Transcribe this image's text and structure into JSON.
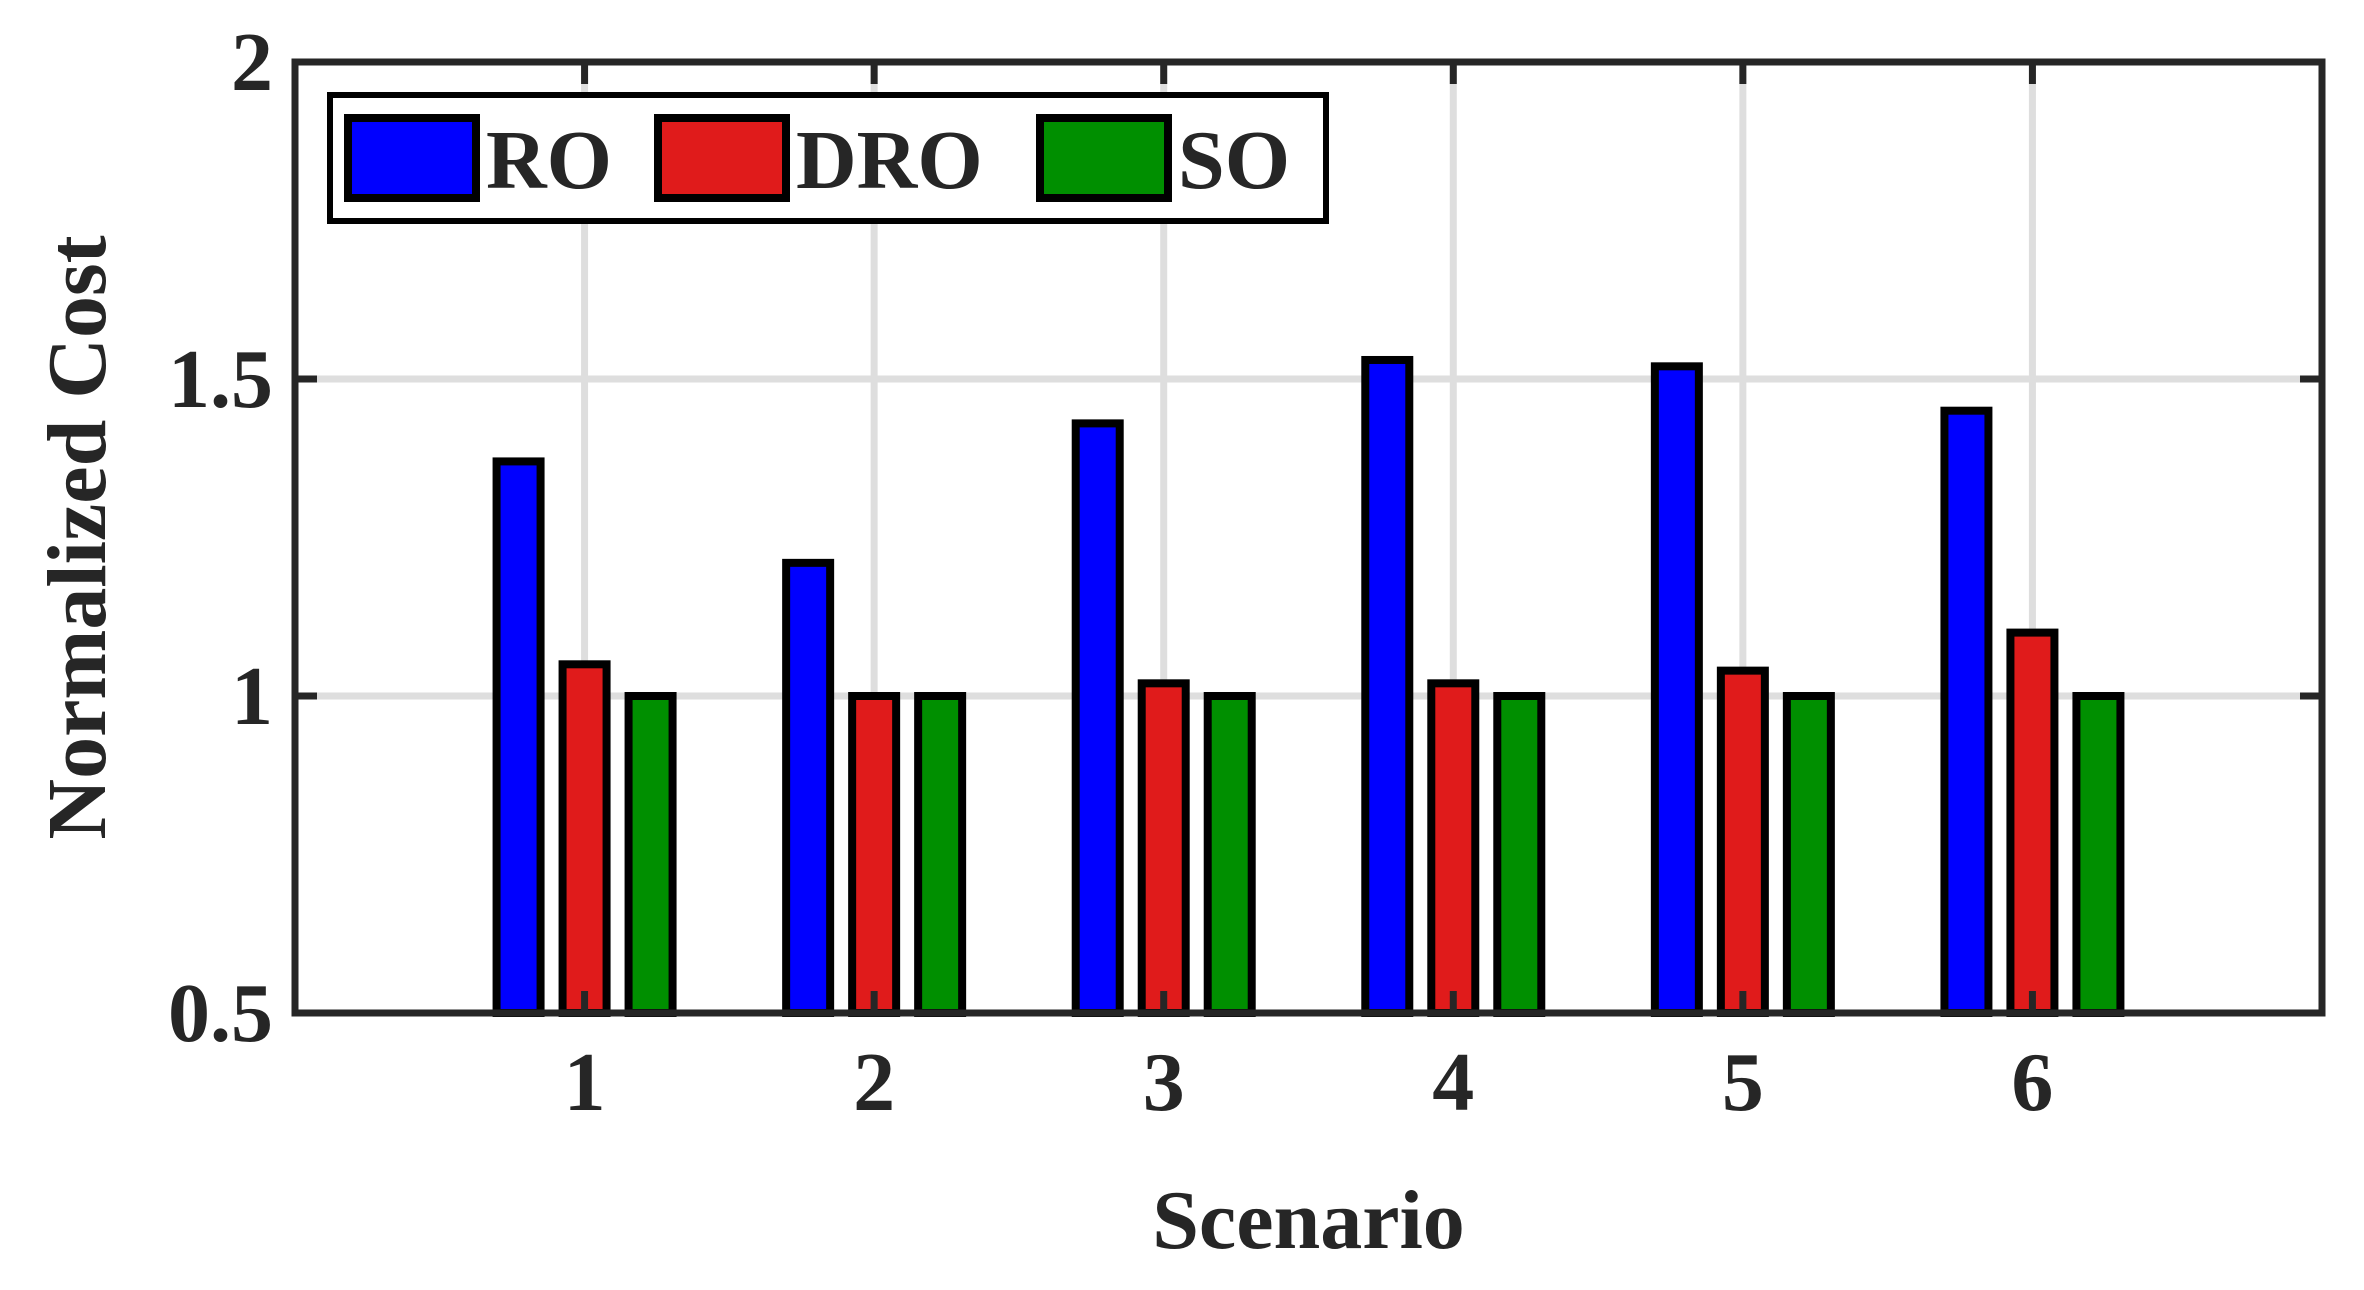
{
  "chart_data": {
    "type": "bar",
    "title": "",
    "xlabel": "Scenario",
    "ylabel": "Normalized Cost",
    "categories": [
      "1",
      "2",
      "3",
      "4",
      "5",
      "6"
    ],
    "xlim": [
      0,
      7
    ],
    "ylim": [
      0.5,
      2
    ],
    "yticks": [
      0.5,
      1,
      1.5,
      2
    ],
    "ytick_labels": [
      "0.5",
      "1",
      "1.5",
      "2"
    ],
    "grid": true,
    "legend_position": "top-left",
    "legend_orientation": "horizontal",
    "series": [
      {
        "name": "RO",
        "color": "#0000ff",
        "values": [
          1.37,
          1.21,
          1.43,
          1.53,
          1.52,
          1.45
        ]
      },
      {
        "name": "DRO",
        "color": "#e01b1b",
        "values": [
          1.05,
          1.0,
          1.02,
          1.02,
          1.04,
          1.1
        ]
      },
      {
        "name": "SO",
        "color": "#008f00",
        "values": [
          1.0,
          1.0,
          1.0,
          1.0,
          1.0,
          1.0
        ]
      }
    ]
  }
}
